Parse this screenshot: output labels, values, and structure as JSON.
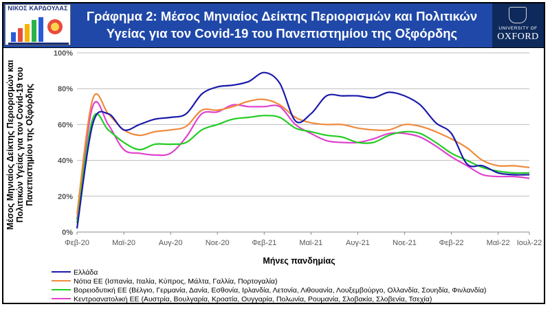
{
  "header": {
    "title_line1": "Γράφημα 2: Μέσος Μηνιαίος Δείκτης Περιορισμών και Πολιτικών",
    "title_line2": "Υγείας για τον Covid-19 του Πανεπιστημίου της Οξφόρδης",
    "logo_left_text": "ΝΙΚΟΣ ΚΑΡΔΟΥΛΑΣ",
    "logo_right_line1": "UNIVERSITY OF",
    "logo_right_line2": "OXFORD"
  },
  "colors": {
    "header_bg": "#1f48a8",
    "greece": "#1a1aaa",
    "south": "#f08a3c",
    "north": "#22cc22",
    "central_east": "#e040d0"
  },
  "chart_data": {
    "type": "line",
    "ylabel": "Μέσος Μηνιαίος Δείκτης Περιορισμών και Πολιτικών Υγείας για τον Covid-19 του Πανεπιστημίου της Οξφόρδης",
    "xlabel": "Μήνες πανδημίας",
    "ylim": [
      0,
      100
    ],
    "yticks": [
      "0%",
      "20%",
      "40%",
      "60%",
      "80%",
      "100%"
    ],
    "ytick_values": [
      0,
      20,
      40,
      60,
      80,
      100
    ],
    "x_tick_labels": [
      "Φεβ-20",
      "Μαϊ-20",
      "Αυγ-20",
      "Νοε-20",
      "Φεβ-21",
      "Μαϊ-21",
      "Αυγ-21",
      "Νοε-21",
      "Φεβ-22",
      "Μαϊ-22",
      "Ιουλ-22"
    ],
    "x_tick_index": [
      0,
      3,
      6,
      9,
      12,
      15,
      18,
      21,
      24,
      27,
      29
    ],
    "categories": [
      "Φεβ-20",
      "Μαρ-20",
      "Απρ-20",
      "Μαϊ-20",
      "Ιουν-20",
      "Ιουλ-20",
      "Αυγ-20",
      "Σεπ-20",
      "Οκτ-20",
      "Νοε-20",
      "Δεκ-20",
      "Ιαν-21",
      "Φεβ-21",
      "Μαρ-21",
      "Απρ-21",
      "Μαϊ-21",
      "Ιουν-21",
      "Ιουλ-21",
      "Αυγ-21",
      "Σεπ-21",
      "Οκτ-21",
      "Νοε-21",
      "Δεκ-21",
      "Ιαν-22",
      "Φεβ-22",
      "Μαρ-22",
      "Απρ-22",
      "Μαϊ-22",
      "Ιουν-22",
      "Ιουλ-22"
    ],
    "grid": true,
    "legend_position": "bottom",
    "series": [
      {
        "name": "Ελλάδα",
        "color": "#1a1aaa",
        "values": [
          2,
          60,
          66,
          57,
          60,
          63,
          64,
          66,
          77,
          81,
          82,
          84,
          89,
          83,
          62,
          66,
          76,
          76,
          76,
          75,
          78,
          76,
          71,
          61,
          55,
          38,
          37,
          33,
          32,
          32
        ]
      },
      {
        "name": "Νότια ΕΕ (Ισπανία, Ιταλία, Κύπρος, Μάλτα, Γαλλία, Πορτογαλία)",
        "color": "#f08a3c",
        "values": [
          10,
          74,
          66,
          57,
          54,
          56,
          57,
          59,
          68,
          68,
          70,
          73,
          74,
          71,
          64,
          61,
          60,
          60,
          58,
          57,
          57,
          60,
          59,
          56,
          52,
          47,
          40,
          37,
          37,
          36
        ]
      },
      {
        "name": "Βορειοδυτική ΕΕ (Βέλγιο, Γερμανία, Δανία, Εσθονία, Ιρλανδία, Λετονία, Λιθουανία, Λουξεμβούργο, Ολλανδία, Σουηδία, Φινλανδία)",
        "color": "#22cc22",
        "values": [
          5,
          63,
          57,
          50,
          46,
          49,
          49,
          50,
          57,
          60,
          63,
          64,
          65,
          64,
          58,
          56,
          54,
          53,
          50,
          50,
          54,
          56,
          55,
          50,
          44,
          40,
          36,
          34,
          33,
          33
        ]
      },
      {
        "name": "Κεντροανατολική ΕΕ (Αυστρία, Βουλγαρία, Κροατία, Ουγγαρία, Πολωνία, Ρουμανία, Σλοβακία, Σλοβενία, Τσεχία)",
        "color": "#e040d0",
        "values": [
          7,
          70,
          60,
          46,
          44,
          43,
          44,
          53,
          66,
          67,
          71,
          70,
          70,
          70,
          60,
          55,
          51,
          50,
          50,
          52,
          55,
          55,
          53,
          48,
          42,
          37,
          32,
          31,
          31,
          30
        ]
      }
    ]
  }
}
